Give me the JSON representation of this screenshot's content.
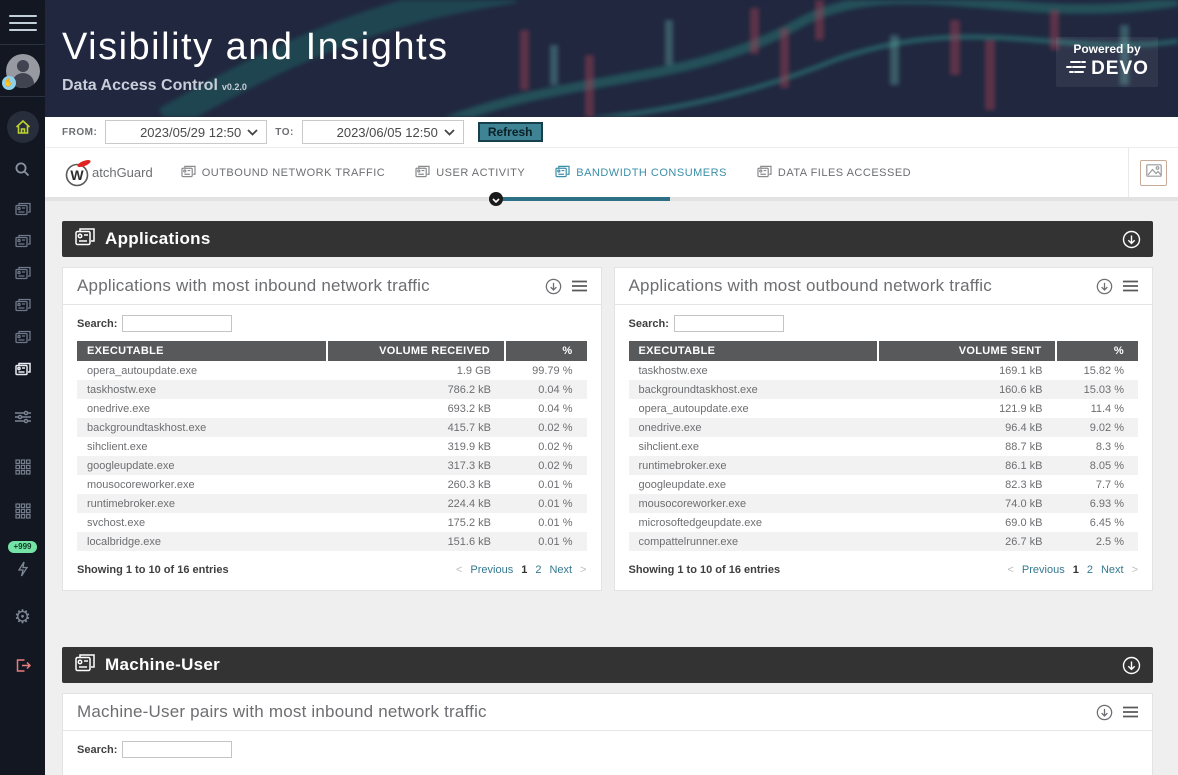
{
  "colors": {
    "accent_teal": "#3b8fa8",
    "underline_teal": "#2e7187",
    "refresh_bg": "#3e8495",
    "section_bar_bg": "#333333",
    "table_header_bg": "#58595b",
    "sidebar_bg": "#121722",
    "hero_bg": "#20273f",
    "home_icon_lime": "#bfd32d",
    "badge_green": "#74e3a5",
    "logout_red": "#e87e7e",
    "watchguard_red": "#e0241f"
  },
  "sidebar": {
    "badge": "+999",
    "gear_glyph": "⚙",
    "hand_glyph": "✋"
  },
  "header": {
    "title": "Visibility and Insights",
    "subtitle": "Data Access Control",
    "version": "v0.2.0",
    "powered_by": "Powered by",
    "brand": "DEVO"
  },
  "toolbar": {
    "from_label": "FROM:",
    "from_value": "2023/05/29 12:50",
    "to_label": "TO:",
    "to_value": "2023/06/05 12:50",
    "refresh_label": "Refresh"
  },
  "tabbar": {
    "logo_w": "W",
    "logo_text": "atchGuard",
    "tabs": [
      {
        "label": "OUTBOUND NETWORK TRAFFIC"
      },
      {
        "label": "USER ACTIVITY"
      },
      {
        "label": "BANDWIDTH CONSUMERS"
      },
      {
        "label": "DATA FILES ACCESSED"
      }
    ]
  },
  "sections": {
    "applications": {
      "title": "Applications"
    },
    "machine_user": {
      "title": "Machine-User"
    }
  },
  "pagination": {
    "prev_symbol": "<",
    "previous": "Previous",
    "pages": [
      "1",
      "2"
    ],
    "current_page": "1",
    "next": "Next",
    "next_symbol": ">"
  },
  "cards": {
    "inbound": {
      "title": "Applications with most inbound network traffic",
      "search_label": "Search:",
      "columns": [
        "EXECUTABLE",
        "VOLUME RECEIVED",
        "%"
      ],
      "rows": [
        [
          "opera_autoupdate.exe",
          "1.9 GB",
          "99.79 %"
        ],
        [
          "taskhostw.exe",
          "786.2 kB",
          "0.04 %"
        ],
        [
          "onedrive.exe",
          "693.2 kB",
          "0.04 %"
        ],
        [
          "backgroundtaskhost.exe",
          "415.7 kB",
          "0.02 %"
        ],
        [
          "sihclient.exe",
          "319.9 kB",
          "0.02 %"
        ],
        [
          "googleupdate.exe",
          "317.3 kB",
          "0.02 %"
        ],
        [
          "mousocoreworker.exe",
          "260.3 kB",
          "0.01 %"
        ],
        [
          "runtimebroker.exe",
          "224.4 kB",
          "0.01 %"
        ],
        [
          "svchost.exe",
          "175.2 kB",
          "0.01 %"
        ],
        [
          "localbridge.exe",
          "151.6 kB",
          "0.01 %"
        ]
      ],
      "footer": "Showing 1 to 10 of 16 entries"
    },
    "outbound": {
      "title": "Applications with most outbound network traffic",
      "search_label": "Search:",
      "columns": [
        "EXECUTABLE",
        "VOLUME SENT",
        "%"
      ],
      "rows": [
        [
          "taskhostw.exe",
          "169.1 kB",
          "15.82 %"
        ],
        [
          "backgroundtaskhost.exe",
          "160.6 kB",
          "15.03 %"
        ],
        [
          "opera_autoupdate.exe",
          "121.9 kB",
          "11.4 %"
        ],
        [
          "onedrive.exe",
          "96.4 kB",
          "9.02 %"
        ],
        [
          "sihclient.exe",
          "88.7 kB",
          "8.3 %"
        ],
        [
          "runtimebroker.exe",
          "86.1 kB",
          "8.05 %"
        ],
        [
          "googleupdate.exe",
          "82.3 kB",
          "7.7 %"
        ],
        [
          "mousocoreworker.exe",
          "74.0 kB",
          "6.93 %"
        ],
        [
          "microsoftedgeupdate.exe",
          "69.0 kB",
          "6.45 %"
        ],
        [
          "compattelrunner.exe",
          "26.7 kB",
          "2.5 %"
        ]
      ],
      "footer": "Showing 1 to 10 of 16 entries"
    },
    "machine_user": {
      "title": "Machine-User pairs with most inbound network traffic",
      "search_label": "Search:"
    }
  }
}
